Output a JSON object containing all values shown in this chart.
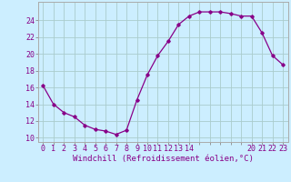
{
  "hours": [
    0,
    1,
    2,
    3,
    4,
    5,
    6,
    7,
    8,
    9,
    10,
    11,
    12,
    13,
    14,
    15,
    16,
    17,
    18,
    19,
    20,
    21,
    22,
    23
  ],
  "values": [
    16.2,
    14.0,
    13.0,
    12.5,
    11.5,
    11.0,
    10.8,
    10.4,
    10.9,
    14.5,
    17.5,
    19.8,
    21.5,
    23.5,
    24.5,
    25.0,
    25.0,
    25.0,
    24.8,
    24.5,
    24.5,
    22.5,
    19.8,
    18.7
  ],
  "line_color": "#880088",
  "marker": "D",
  "marker_size": 1.8,
  "line_width": 0.9,
  "bg_color": "#cceeff",
  "grid_color": "#aacccc",
  "xlabel": "Windchill (Refroidissement éolien,°C)",
  "xlabel_fontsize": 6.5,
  "xtick_labels": [
    "0",
    "1",
    "2",
    "3",
    "4",
    "5",
    "6",
    "7",
    "8",
    "9",
    "10",
    "11",
    "12",
    "13",
    "14",
    "",
    "",
    "",
    "",
    "",
    "20",
    "21",
    "22",
    "23"
  ],
  "ytick_labels": [
    "10",
    "12",
    "14",
    "16",
    "18",
    "20",
    "22",
    "24"
  ],
  "ytick_positions": [
    10,
    12,
    14,
    16,
    18,
    20,
    22,
    24
  ],
  "ylim": [
    9.5,
    26.2
  ],
  "xlim": [
    -0.5,
    23.5
  ],
  "tick_fontsize": 6.0
}
